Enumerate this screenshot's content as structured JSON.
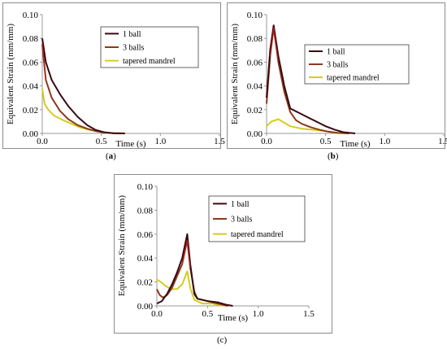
{
  "colors": {
    "one_ball": "#3a0a10",
    "three_balls": "#8b3a1a",
    "tapered": "#d6cc1e",
    "peak_red": "#c81e1e"
  },
  "captions": {
    "a_open": "(",
    "a_letter": "a",
    "a_close": ")",
    "b_open": "(",
    "b_letter": "b",
    "b_close": ")",
    "c": "(c)"
  },
  "chart_data": [
    {
      "id": "a",
      "type": "line",
      "xlabel": "Time (s)",
      "ylabel": "Equivalent Strain (mm/mm)",
      "xlim": [
        0,
        1.5
      ],
      "ylim": [
        0,
        0.1
      ],
      "xticks": [
        "0.0",
        "0.5",
        "1.0",
        "1.5"
      ],
      "yticks": [
        "0.00",
        "0.02",
        "0.04",
        "0.06",
        "0.08",
        "0.10"
      ],
      "legend": "top-right",
      "series": [
        {
          "name": "1 ball",
          "key": "one_ball",
          "x": [
            0,
            0.03,
            0.08,
            0.15,
            0.22,
            0.3,
            0.38,
            0.45,
            0.52,
            0.6,
            0.7
          ],
          "y": [
            0.08,
            0.06,
            0.045,
            0.033,
            0.023,
            0.014,
            0.007,
            0.003,
            0.001,
            0.0002,
            0
          ]
        },
        {
          "name": "3 balls",
          "key": "three_balls",
          "x": [
            0,
            0.03,
            0.08,
            0.15,
            0.22,
            0.3,
            0.38,
            0.45,
            0.52,
            0.6,
            0.7
          ],
          "y": [
            0.075,
            0.045,
            0.03,
            0.019,
            0.012,
            0.007,
            0.004,
            0.002,
            0.0008,
            0.0002,
            0
          ]
        },
        {
          "name": "tapered mandrel",
          "key": "tapered",
          "x": [
            0,
            0.02,
            0.05,
            0.1,
            0.18,
            0.25,
            0.32,
            0.4,
            0.48,
            0.55,
            0.65
          ],
          "y": [
            0.038,
            0.025,
            0.02,
            0.015,
            0.011,
            0.008,
            0.005,
            0.003,
            0.0015,
            0.0004,
            0
          ]
        }
      ]
    },
    {
      "id": "b",
      "type": "line",
      "xlabel": "Time (s)",
      "ylabel": "Equivalent Strain (mm/mm)",
      "xlim": [
        0,
        1.5
      ],
      "ylim": [
        0,
        0.1
      ],
      "xticks": [
        "0.0",
        "0.5",
        "1.0",
        "1.5"
      ],
      "yticks": [
        "0.00",
        "0.02",
        "0.04",
        "0.06",
        "0.08",
        "0.10"
      ],
      "legend": "top-right",
      "series": [
        {
          "name": "1 ball",
          "key": "one_ball",
          "x": [
            0,
            0.03,
            0.06,
            0.1,
            0.15,
            0.2,
            0.3,
            0.4,
            0.5,
            0.58,
            0.65,
            0.75
          ],
          "y": [
            0.03,
            0.07,
            0.091,
            0.065,
            0.04,
            0.021,
            0.016,
            0.011,
            0.006,
            0.003,
            0.001,
            0
          ]
        },
        {
          "name": "3 balls",
          "key": "three_balls",
          "x": [
            0,
            0.03,
            0.06,
            0.1,
            0.15,
            0.2,
            0.25,
            0.3,
            0.38,
            0.45,
            0.52,
            0.6,
            0.7
          ],
          "y": [
            0.025,
            0.065,
            0.089,
            0.06,
            0.035,
            0.018,
            0.011,
            0.008,
            0.005,
            0.003,
            0.0015,
            0.0005,
            0
          ]
        },
        {
          "name": "tapered mandrel",
          "key": "tapered",
          "x": [
            0,
            0.04,
            0.1,
            0.15,
            0.2,
            0.3,
            0.4,
            0.5,
            0.55,
            0.6,
            0.7
          ],
          "y": [
            0.006,
            0.01,
            0.012,
            0.009,
            0.006,
            0.004,
            0.003,
            0.002,
            0.001,
            0.0003,
            0
          ]
        }
      ]
    },
    {
      "id": "c",
      "type": "line",
      "xlabel": "Time (s)",
      "ylabel": "Equivalent Strain (mm/mm)",
      "xlim": [
        0,
        1.5
      ],
      "ylim": [
        0,
        0.1
      ],
      "xticks": [
        "0.0",
        "0.5",
        "1.0",
        "1.5"
      ],
      "yticks": [
        "0.00",
        "0.02",
        "0.04",
        "0.06",
        "0.08",
        "0.10"
      ],
      "legend": "top-right",
      "series": [
        {
          "name": "1 ball",
          "key": "one_ball",
          "x": [
            0,
            0.05,
            0.1,
            0.15,
            0.2,
            0.25,
            0.3,
            0.33,
            0.37,
            0.4,
            0.5,
            0.6,
            0.68,
            0.75
          ],
          "y": [
            0.002,
            0.004,
            0.01,
            0.018,
            0.028,
            0.04,
            0.06,
            0.035,
            0.01,
            0.006,
            0.004,
            0.003,
            0.001,
            0
          ]
        },
        {
          "name": "3 balls",
          "key": "three_balls",
          "x": [
            0,
            0.03,
            0.06,
            0.1,
            0.15,
            0.2,
            0.25,
            0.3,
            0.33,
            0.37,
            0.4,
            0.5,
            0.6,
            0.7
          ],
          "y": [
            0.014,
            0.009,
            0.007,
            0.009,
            0.015,
            0.025,
            0.035,
            0.055,
            0.032,
            0.012,
            0.006,
            0.004,
            0.002,
            0
          ]
        },
        {
          "name": "tapered mandrel",
          "key": "tapered",
          "x": [
            0,
            0.04,
            0.08,
            0.12,
            0.16,
            0.2,
            0.25,
            0.3,
            0.33,
            0.37,
            0.45,
            0.55,
            0.62,
            0.7
          ],
          "y": [
            0.022,
            0.02,
            0.017,
            0.015,
            0.014,
            0.014,
            0.018,
            0.029,
            0.015,
            0.005,
            0.002,
            0.002,
            0.0005,
            0
          ]
        }
      ]
    }
  ]
}
